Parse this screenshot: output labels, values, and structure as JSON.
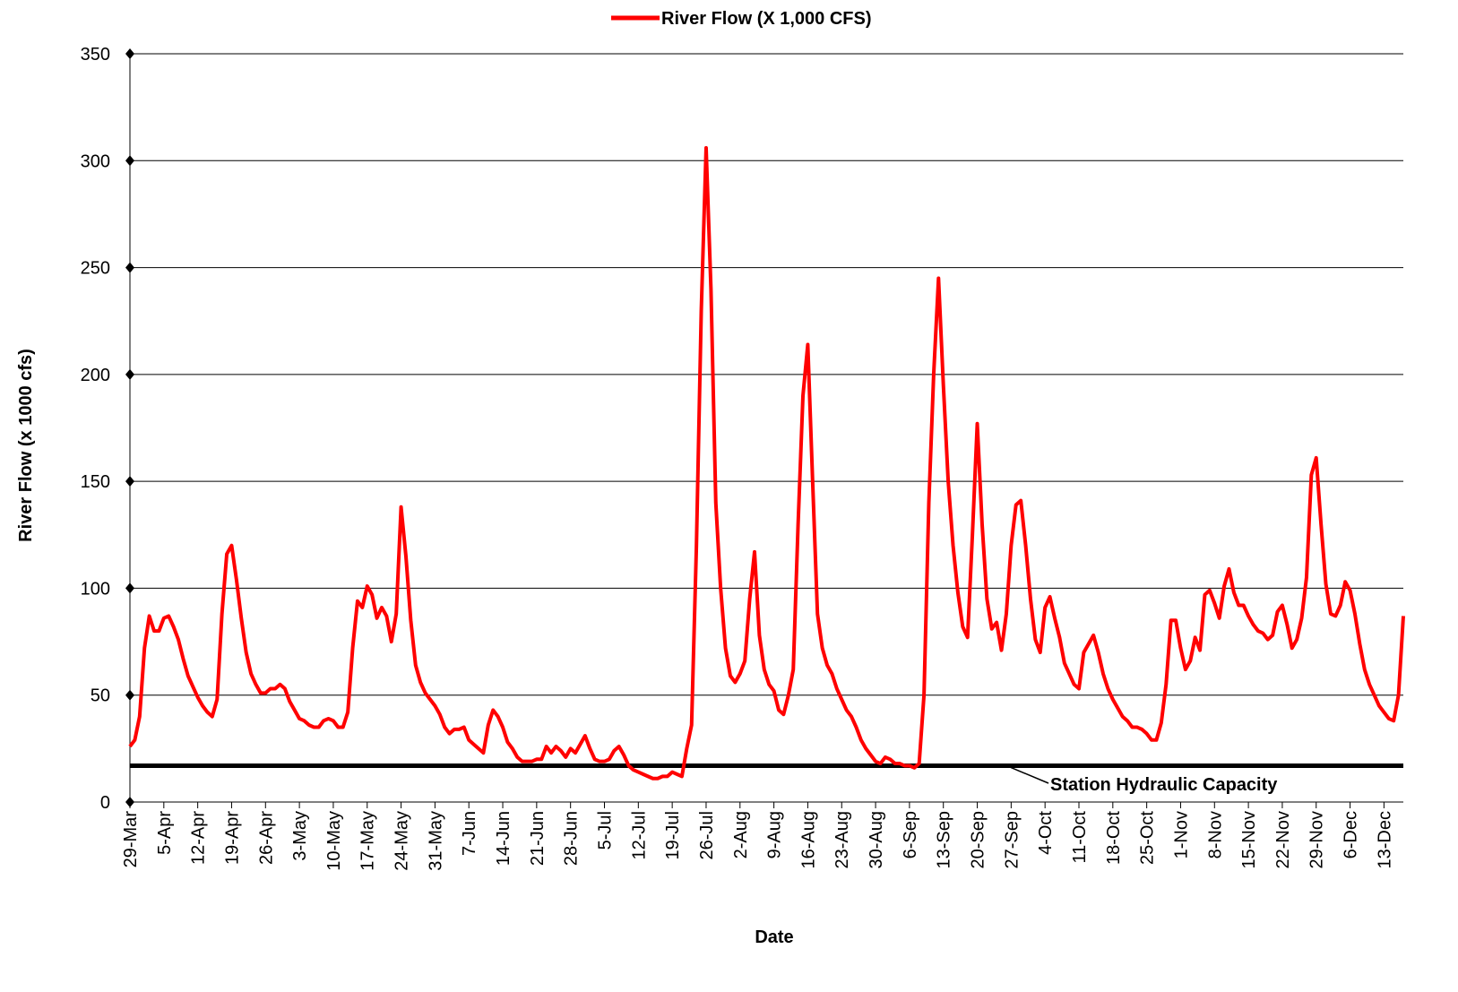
{
  "chart_data": {
    "type": "line",
    "legend_title": null,
    "x_label": "Date",
    "y_label": "River Flow (x 1000 cfs)",
    "categories": [
      "29-Mar",
      null,
      null,
      null,
      null,
      null,
      null,
      "5-Apr",
      null,
      null,
      null,
      null,
      null,
      null,
      "12-Apr",
      null,
      null,
      null,
      null,
      null,
      null,
      "19-Apr",
      null,
      null,
      null,
      null,
      null,
      null,
      "26-Apr",
      null,
      null,
      null,
      null,
      null,
      null,
      "3-May",
      null,
      null,
      null,
      null,
      null,
      null,
      "10-May",
      null,
      null,
      null,
      null,
      null,
      null,
      "17-May",
      null,
      null,
      null,
      null,
      null,
      null,
      "24-May",
      null,
      null,
      null,
      null,
      null,
      null,
      "31-May",
      null,
      null,
      null,
      null,
      null,
      null,
      "7-Jun",
      null,
      null,
      null,
      null,
      null,
      null,
      "14-Jun",
      null,
      null,
      null,
      null,
      null,
      null,
      "21-Jun",
      null,
      null,
      null,
      null,
      null,
      null,
      "28-Jun",
      null,
      null,
      null,
      null,
      null,
      null,
      "5-Jul",
      null,
      null,
      null,
      null,
      null,
      null,
      "12-Jul",
      null,
      null,
      null,
      null,
      null,
      null,
      "19-Jul",
      null,
      null,
      null,
      null,
      null,
      null,
      "26-Jul",
      null,
      null,
      null,
      null,
      null,
      null,
      "2-Aug",
      null,
      null,
      null,
      null,
      null,
      null,
      "9-Aug",
      null,
      null,
      null,
      null,
      null,
      null,
      "16-Aug",
      null,
      null,
      null,
      null,
      null,
      null,
      "23-Aug",
      null,
      null,
      null,
      null,
      null,
      null,
      "30-Aug",
      null,
      null,
      null,
      null,
      null,
      null,
      "6-Sep",
      null,
      null,
      null,
      null,
      null,
      null,
      "13-Sep",
      null,
      null,
      null,
      null,
      null,
      null,
      "20-Sep",
      null,
      null,
      null,
      null,
      null,
      null,
      "27-Sep",
      null,
      null,
      null,
      null,
      null,
      null,
      "4-Oct",
      null,
      null,
      null,
      null,
      null,
      null,
      "11-Oct",
      null,
      null,
      null,
      null,
      null,
      null,
      "18-Oct",
      null,
      null,
      null,
      null,
      null,
      null,
      "25-Oct",
      null,
      null,
      null,
      null,
      null,
      null,
      "1-Nov",
      null,
      null,
      null,
      null,
      null,
      null,
      "8-Nov",
      null,
      null,
      null,
      null,
      null,
      null,
      "15-Nov",
      null,
      null,
      null,
      null,
      null,
      null,
      "22-Nov",
      null,
      null,
      null,
      null,
      null,
      null,
      "29-Nov",
      null,
      null,
      null,
      null,
      null,
      null,
      "6-Dec",
      null,
      null,
      null,
      null,
      null,
      null,
      "13-Dec",
      null,
      null,
      null,
      null
    ],
    "series": [
      {
        "name": "River Flow (X 1,000 CFS)",
        "color": "#ff0000",
        "values": [
          26,
          29,
          40,
          72,
          87,
          80,
          80,
          86,
          87,
          82,
          76,
          67,
          59,
          54,
          49,
          45,
          42,
          40,
          48,
          88,
          116,
          120,
          104,
          86,
          70,
          60,
          55,
          51,
          51,
          53,
          53,
          55,
          53,
          47,
          43,
          39,
          38,
          36,
          35,
          35,
          38,
          39,
          38,
          35,
          35,
          42,
          72,
          94,
          91,
          101,
          97,
          86,
          91,
          87,
          75,
          88,
          138,
          115,
          85,
          64,
          56,
          51,
          48,
          45,
          41,
          35,
          32,
          34,
          34,
          35,
          29,
          27,
          25,
          23,
          36,
          43,
          40,
          35,
          28,
          25,
          21,
          19,
          19,
          19,
          20,
          20,
          26,
          23,
          26,
          24,
          21,
          25,
          23,
          27,
          31,
          25,
          20,
          19,
          19,
          20,
          24,
          26,
          22,
          17,
          15,
          14,
          13,
          12,
          11,
          11,
          12,
          12,
          14,
          13,
          12,
          25,
          36,
          120,
          230,
          306,
          240,
          140,
          100,
          72,
          59,
          56,
          60,
          66,
          95,
          117,
          78,
          62,
          55,
          52,
          43,
          41,
          50,
          62,
          130,
          190,
          214,
          150,
          88,
          72,
          64,
          60,
          53,
          48,
          43,
          40,
          35,
          29,
          25,
          22,
          19,
          18,
          21,
          20,
          18,
          18,
          17,
          17,
          16,
          18,
          50,
          140,
          200,
          245,
          195,
          150,
          120,
          98,
          82,
          77,
          125,
          177,
          130,
          95,
          81,
          84,
          71,
          88,
          120,
          139,
          141,
          120,
          95,
          76,
          70,
          91,
          96,
          86,
          77,
          65,
          60,
          55,
          53,
          70,
          74,
          78,
          70,
          60,
          53,
          48,
          44,
          40,
          38,
          35,
          35,
          34,
          32,
          29,
          29,
          37,
          55,
          85,
          85,
          72,
          62,
          66,
          77,
          71,
          97,
          99,
          93,
          86,
          101,
          109,
          98,
          92,
          92,
          87,
          83,
          80,
          79,
          76,
          78,
          89,
          92,
          83,
          72,
          76,
          86,
          105,
          153,
          161,
          130,
          102,
          88,
          87,
          92,
          103,
          99,
          88,
          74,
          62,
          55,
          50,
          45,
          42,
          39,
          38,
          50,
          87
        ]
      }
    ],
    "reference_line": {
      "value": 17,
      "label": "Station Hydraulic Capacity",
      "color": "#000000"
    },
    "ylim": [
      0,
      350
    ],
    "yticks": [
      0,
      50,
      100,
      150,
      200,
      250,
      300,
      350
    ],
    "grid": true
  }
}
